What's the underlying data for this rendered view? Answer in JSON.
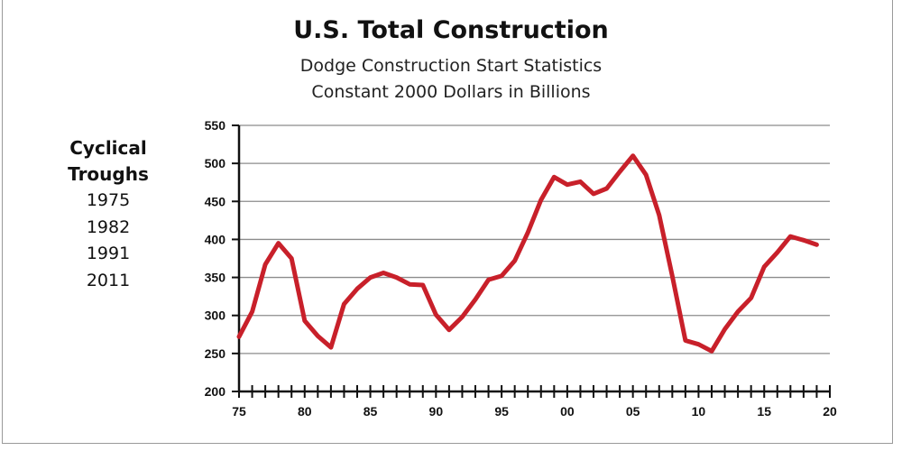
{
  "chart_data": {
    "type": "line",
    "title": "U.S. Total Construction",
    "subtitle": [
      "Dodge Construction Start Statistics",
      "Constant 2000 Dollars in Billions"
    ],
    "xlabel": "",
    "ylabel": "",
    "xlim": [
      1975,
      2020
    ],
    "ylim": [
      200,
      550
    ],
    "y_ticks": [
      200,
      250,
      300,
      350,
      400,
      450,
      500,
      550
    ],
    "x_ticks": [
      1975,
      1980,
      1985,
      1990,
      1995,
      2000,
      2005,
      2010,
      2015,
      2020
    ],
    "x_tick_labels": [
      "75",
      "80",
      "85",
      "90",
      "95",
      "00",
      "05",
      "10",
      "15",
      "20"
    ],
    "grid": "horizontal",
    "line_color": "#c8202a",
    "series": [
      {
        "x": [
          1975,
          1976,
          1977,
          1978,
          1979,
          1980,
          1981,
          1982,
          1983,
          1984,
          1985,
          1986,
          1987,
          1988,
          1989,
          1990,
          1991,
          1992,
          1993,
          1994,
          1995,
          1996,
          1997,
          1998,
          1999,
          2000,
          2001,
          2002,
          2003,
          2004,
          2005,
          2006,
          2007,
          2008,
          2009,
          2010,
          2011,
          2012,
          2013,
          2014,
          2015,
          2016,
          2017,
          2018,
          2019
        ],
        "values": [
          272,
          305,
          367,
          395,
          375,
          293,
          273,
          258,
          315,
          335,
          350,
          356,
          350,
          341,
          340,
          301,
          281,
          298,
          321,
          347,
          352,
          372,
          409,
          452,
          482,
          472,
          476,
          460,
          467,
          489,
          510,
          485,
          432,
          352,
          267,
          262,
          253,
          282,
          305,
          323,
          364,
          383,
          404,
          399,
          393
        ]
      }
    ]
  },
  "side_panel": {
    "heading_line1": "Cyclical",
    "heading_line2": "Troughs",
    "years": [
      "1975",
      "1982",
      "1991",
      "2011"
    ]
  }
}
